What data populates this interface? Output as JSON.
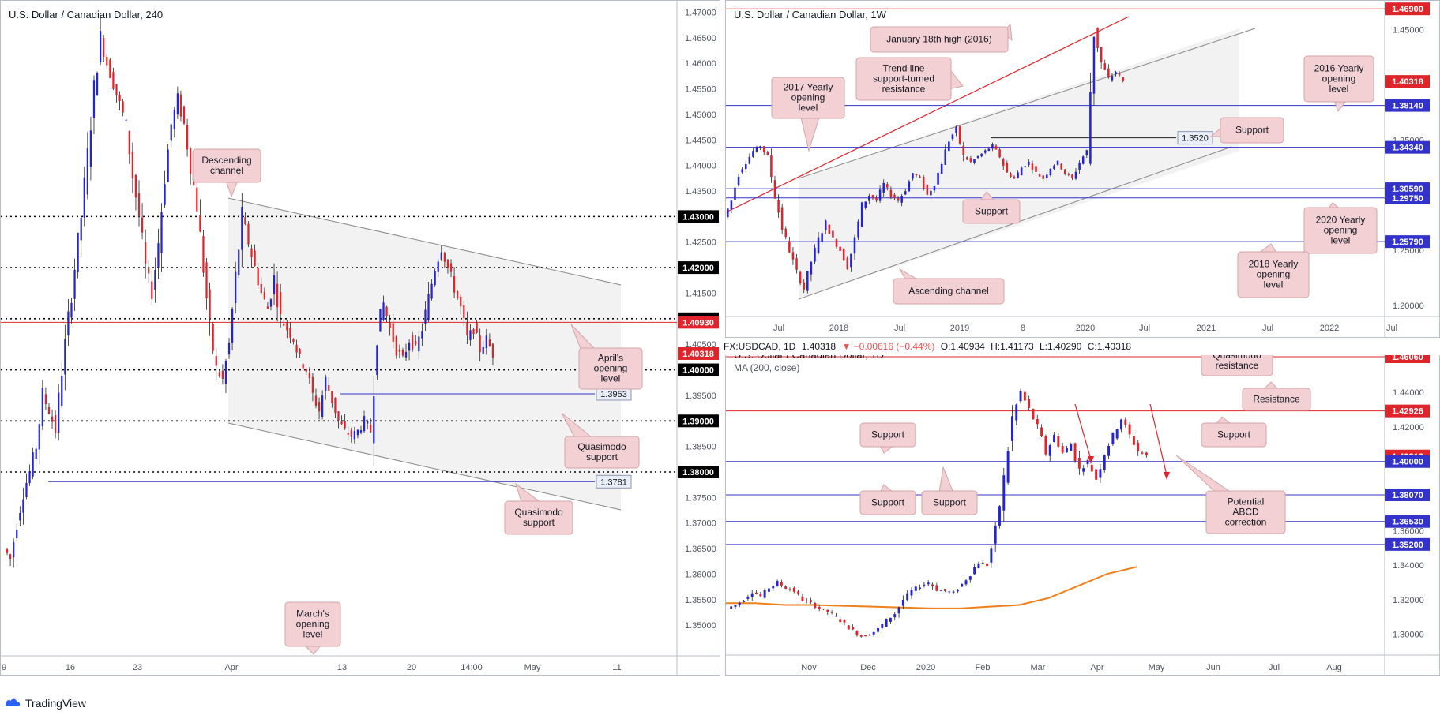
{
  "footer": {
    "brand": "TradingView",
    "logo_icon": "tradingview-cloud-icon"
  },
  "header_row": {
    "symbol": "FX:USDCAD, 1D",
    "last": "1.40318",
    "change": "▼ −0.00616 (−0.44%)",
    "open": "O:1.40934",
    "high": "H:1.41173",
    "low": "L:1.40290",
    "close": "C:1.40318"
  },
  "colors": {
    "bull": "#2323d8",
    "bear": "#e0242b",
    "support_line": "#3333cc",
    "resistance_line": "#e0242b",
    "label_box": "#f2d0d3",
    "ma": "#ef7f1a"
  },
  "chart_data": [
    {
      "id": "h4",
      "type": "candlestick",
      "title": "U.S. Dollar / Canadian Dollar, 240",
      "ylim": [
        1.344,
        1.471
      ],
      "x_ticks": [
        "9",
        "16",
        "23",
        "Apr",
        "13",
        "20",
        "14:00",
        "May",
        "11"
      ],
      "y_ticks": [
        "1.47000",
        "1.46500",
        "1.46000",
        "1.45500",
        "1.45000",
        "1.44500",
        "1.44000",
        "1.43500",
        "1.42500",
        "1.41500",
        "1.40500",
        "1.39500",
        "1.38500",
        "1.37500",
        "1.37000",
        "1.36500",
        "1.36000",
        "1.35500",
        "1.35000"
      ],
      "close_path": [
        1.365,
        1.363,
        1.37,
        1.376,
        1.38,
        1.385,
        1.395,
        1.392,
        1.388,
        1.4,
        1.41,
        1.42,
        1.43,
        1.442,
        1.455,
        1.465,
        1.46,
        1.456,
        1.452,
        1.448,
        1.438,
        1.43,
        1.42,
        1.415,
        1.425,
        1.438,
        1.448,
        1.453,
        1.448,
        1.44,
        1.432,
        1.42,
        1.408,
        1.4,
        1.398,
        1.405,
        1.418,
        1.43,
        1.425,
        1.42,
        1.415,
        1.412,
        1.418,
        1.41,
        1.408,
        1.406,
        1.402,
        1.4,
        1.395,
        1.392,
        1.398,
        1.394,
        1.39,
        1.388,
        1.387,
        1.388,
        1.39,
        1.388,
        1.408,
        1.413,
        1.408,
        1.404,
        1.402,
        1.406,
        1.404,
        1.408,
        1.414,
        1.42,
        1.424,
        1.42,
        1.416,
        1.412,
        1.406,
        1.408,
        1.404,
        1.406,
        1.4031
      ],
      "levels": [
        {
          "label": "1.43000",
          "value": 1.43,
          "style": "dotted",
          "color": "#000000"
        },
        {
          "label": "1.42000",
          "value": 1.42,
          "style": "dotted",
          "color": "#000000"
        },
        {
          "label": "1.41000",
          "value": 1.41,
          "style": "dotted",
          "color": "#000000"
        },
        {
          "label": "1.40930",
          "value": 1.4093,
          "style": "solid",
          "color": "#e0242b"
        },
        {
          "label": "1.40318",
          "value": 1.40318,
          "style": "none",
          "color": "#e0242b"
        },
        {
          "label": "1.40000",
          "value": 1.4,
          "style": "dotted",
          "color": "#000000"
        },
        {
          "label": "1.39000",
          "value": 1.39,
          "style": "dotted",
          "color": "#000000"
        },
        {
          "label": "1.38000",
          "value": 1.38,
          "style": "dotted",
          "color": "#000000"
        }
      ],
      "small_levels": [
        {
          "label": "1.3953",
          "value": 1.3953
        },
        {
          "label": "1.3781",
          "value": 1.3781
        }
      ],
      "annotations": [
        {
          "text": "Descending channel"
        },
        {
          "text": "April's opening level"
        },
        {
          "text": "Quasimodo support"
        },
        {
          "text": "Quasimodo support"
        },
        {
          "text": "March's opening level"
        }
      ]
    },
    {
      "id": "w1",
      "type": "candlestick",
      "title": "U.S. Dollar / Canadian Dollar, 1W",
      "ylim": [
        1.19,
        1.472
      ],
      "x_ticks": [
        "Jul",
        "2018",
        "Jul",
        "2019",
        "8",
        "2020",
        "Jul",
        "2021",
        "Jul",
        "2022",
        "Jul"
      ],
      "y_ticks": [
        "1.45000",
        "1.35000",
        "1.25000",
        "1.20000"
      ],
      "close_path": [
        1.28,
        1.295,
        1.32,
        1.33,
        1.34,
        1.345,
        1.335,
        1.3,
        1.27,
        1.25,
        1.23,
        1.215,
        1.24,
        1.26,
        1.275,
        1.26,
        1.25,
        1.235,
        1.26,
        1.29,
        1.3,
        1.295,
        1.31,
        1.3,
        1.295,
        1.305,
        1.32,
        1.315,
        1.3,
        1.31,
        1.33,
        1.35,
        1.36,
        1.335,
        1.33,
        1.335,
        1.34,
        1.345,
        1.335,
        1.32,
        1.315,
        1.325,
        1.33,
        1.32,
        1.315,
        1.325,
        1.33,
        1.32,
        1.315,
        1.33,
        1.34,
        1.45,
        1.42,
        1.405,
        1.412,
        1.4031
      ],
      "levels": [
        {
          "label": "1.46900",
          "value": 1.469,
          "color": "#e0242b",
          "tag": "red"
        },
        {
          "label": "1.40318",
          "value": 1.40318,
          "color": "#e0242b",
          "tag": "red"
        },
        {
          "label": "1.38140",
          "value": 1.3814,
          "color": "#3333cc",
          "tag": "blue"
        },
        {
          "label": "1.34340",
          "value": 1.3434,
          "color": "#3333cc",
          "tag": "blue"
        },
        {
          "label": "1.30590",
          "value": 1.3059,
          "color": "#3333cc",
          "tag": "blue"
        },
        {
          "label": "1.29750",
          "value": 1.2975,
          "color": "#3333cc",
          "tag": "blue"
        },
        {
          "label": "1.25790",
          "value": 1.2579,
          "color": "#3333cc",
          "tag": "blue"
        }
      ],
      "small_levels": [
        {
          "label": "1.3520",
          "value": 1.352
        }
      ],
      "annotations": [
        {
          "text": "January 18th high (2016)"
        },
        {
          "text": "Trend line support-turned resistance"
        },
        {
          "text": "2017 Yearly opening level"
        },
        {
          "text": "2016 Yearly opening level"
        },
        {
          "text": "Support"
        },
        {
          "text": "Support"
        },
        {
          "text": "2020 Yearly opening level"
        },
        {
          "text": "2018 Yearly opening level"
        },
        {
          "text": "Ascending channel"
        }
      ]
    },
    {
      "id": "d1",
      "type": "candlestick",
      "title": "U.S. Dollar / Canadian Dollar, 1D",
      "indicator": "MA (200, close)",
      "ylim": [
        1.288,
        1.467
      ],
      "x_ticks": [
        "Nov",
        "Dec",
        "2020",
        "Feb",
        "Mar",
        "Apr",
        "May",
        "Jun",
        "Jul",
        "Aug"
      ],
      "y_ticks": [
        "1.44000",
        "1.42000",
        "1.36000",
        "1.34000",
        "1.32000",
        "1.30000"
      ],
      "close_path": [
        1.315,
        1.317,
        1.32,
        1.325,
        1.322,
        1.327,
        1.33,
        1.327,
        1.325,
        1.32,
        1.318,
        1.315,
        1.313,
        1.31,
        1.306,
        1.302,
        1.299,
        1.3,
        1.303,
        1.308,
        1.312,
        1.32,
        1.325,
        1.328,
        1.33,
        1.326,
        1.325,
        1.324,
        1.329,
        1.335,
        1.342,
        1.34,
        1.36,
        1.39,
        1.425,
        1.44,
        1.43,
        1.42,
        1.405,
        1.415,
        1.405,
        1.41,
        1.395,
        1.4,
        1.39,
        1.405,
        1.415,
        1.425,
        1.415,
        1.406,
        1.4031
      ],
      "ma200": [
        1.318,
        1.318,
        1.317,
        1.317,
        1.3165,
        1.316,
        1.3155,
        1.315,
        1.315,
        1.316,
        1.317,
        1.321,
        1.328,
        1.335,
        1.339
      ],
      "levels": [
        {
          "label": "1.46060",
          "value": 1.4606,
          "color": "#e0242b",
          "tag": "red"
        },
        {
          "label": "1.42926",
          "value": 1.42926,
          "color": "#e0242b",
          "tag": "red"
        },
        {
          "label": "1.40318",
          "value": 1.40318,
          "color": "#e0242b",
          "tag": "red"
        },
        {
          "label": "1.40000",
          "value": 1.4,
          "color": "#3333cc",
          "tag": "blue"
        },
        {
          "label": "1.38070",
          "value": 1.3807,
          "color": "#3333cc",
          "tag": "blue"
        },
        {
          "label": "1.36530",
          "value": 1.3653,
          "color": "#3333cc",
          "tag": "blue"
        },
        {
          "label": "1.35200",
          "value": 1.352,
          "color": "#3333cc",
          "tag": "blue"
        }
      ],
      "annotations": [
        {
          "text": "Quasimodo resistance"
        },
        {
          "text": "Resistance"
        },
        {
          "text": "Support"
        },
        {
          "text": "Support"
        },
        {
          "text": "Support"
        },
        {
          "text": "Support"
        },
        {
          "text": "Potential ABCD correction"
        }
      ]
    }
  ]
}
